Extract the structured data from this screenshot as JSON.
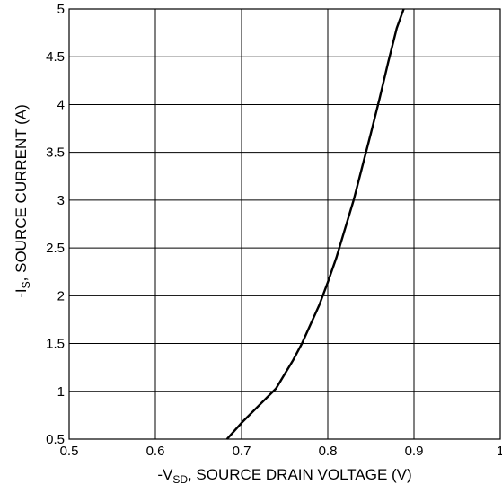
{
  "chart_data": {
    "type": "line",
    "xlabel": {
      "prefix": "-V",
      "sub": "SD",
      "suffix": ", SOURCE DRAIN VOLTAGE (V)"
    },
    "ylabel": {
      "prefix": "-I",
      "sub": "S",
      "suffix": ", SOURCE CURRENT (A)"
    },
    "xlim": [
      0.5,
      1.0
    ],
    "ylim": [
      0.5,
      5.0
    ],
    "xticks": [
      "0.5",
      "0.6",
      "0.7",
      "0.8",
      "0.9",
      "1"
    ],
    "yticks": [
      "0.5",
      "1",
      "1.5",
      "2",
      "2.5",
      "3",
      "3.5",
      "4",
      "4.5",
      "5"
    ],
    "grid": true,
    "series": [
      {
        "x": [
          0.683,
          0.7,
          0.72,
          0.74,
          0.75,
          0.76,
          0.77,
          0.78,
          0.79,
          0.8,
          0.81,
          0.82,
          0.83,
          0.84,
          0.85,
          0.86,
          0.87,
          0.88,
          0.888
        ],
        "y": [
          0.5,
          0.67,
          0.85,
          1.03,
          1.18,
          1.33,
          1.5,
          1.7,
          1.9,
          2.14,
          2.4,
          2.7,
          3.0,
          3.35,
          3.7,
          4.06,
          4.44,
          4.8,
          5.0
        ]
      }
    ]
  }
}
